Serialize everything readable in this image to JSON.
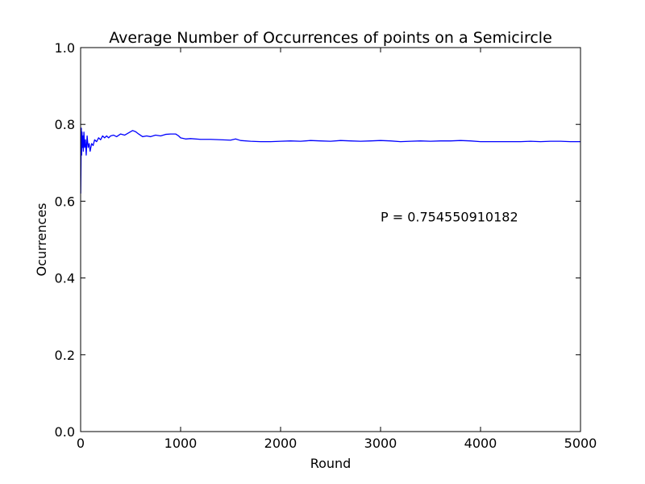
{
  "chart_data": {
    "type": "line",
    "title": "Average Number of Occurrences of points on a Semicircle",
    "xlabel": "Round",
    "ylabel": "Ocurrences",
    "xlim": [
      0,
      5000
    ],
    "ylim": [
      0.0,
      1.0
    ],
    "xticks": [
      "0",
      "1000",
      "2000",
      "3000",
      "4000",
      "5000"
    ],
    "yticks": [
      "0.0",
      "0.2",
      "0.4",
      "0.6",
      "0.8",
      "1.0"
    ],
    "grid": false,
    "annotation": {
      "text": "P = 0.754550910182",
      "x": 3000,
      "y": 0.56
    },
    "series": [
      {
        "color": "#0000ff",
        "x": [
          1,
          4,
          7,
          10,
          14,
          18,
          22,
          27,
          33,
          40,
          48,
          56,
          65,
          75,
          85,
          95,
          110,
          125,
          140,
          160,
          180,
          200,
          220,
          240,
          260,
          280,
          300,
          330,
          360,
          400,
          440,
          480,
          520,
          550,
          580,
          620,
          660,
          700,
          750,
          800,
          850,
          900,
          950,
          980,
          1000,
          1050,
          1100,
          1200,
          1300,
          1400,
          1500,
          1550,
          1600,
          1700,
          1800,
          1900,
          2000,
          2100,
          2200,
          2300,
          2400,
          2500,
          2600,
          2700,
          2800,
          2900,
          3000,
          3100,
          3200,
          3300,
          3400,
          3500,
          3600,
          3700,
          3800,
          3900,
          4000,
          4100,
          4200,
          4300,
          4400,
          4500,
          4600,
          4700,
          4800,
          4900,
          5000
        ],
        "y": [
          0.62,
          0.7,
          0.79,
          0.72,
          0.78,
          0.74,
          0.77,
          0.73,
          0.78,
          0.74,
          0.76,
          0.72,
          0.77,
          0.74,
          0.75,
          0.73,
          0.75,
          0.745,
          0.76,
          0.755,
          0.765,
          0.76,
          0.77,
          0.765,
          0.77,
          0.765,
          0.77,
          0.772,
          0.768,
          0.775,
          0.772,
          0.778,
          0.784,
          0.781,
          0.775,
          0.768,
          0.77,
          0.768,
          0.772,
          0.77,
          0.774,
          0.775,
          0.775,
          0.77,
          0.765,
          0.762,
          0.763,
          0.761,
          0.761,
          0.76,
          0.759,
          0.762,
          0.758,
          0.756,
          0.755,
          0.755,
          0.756,
          0.757,
          0.756,
          0.758,
          0.757,
          0.756,
          0.758,
          0.757,
          0.756,
          0.757,
          0.758,
          0.757,
          0.755,
          0.756,
          0.757,
          0.756,
          0.757,
          0.757,
          0.758,
          0.757,
          0.755,
          0.755,
          0.755,
          0.755,
          0.755,
          0.756,
          0.755,
          0.756,
          0.756,
          0.755,
          0.755
        ]
      }
    ]
  }
}
